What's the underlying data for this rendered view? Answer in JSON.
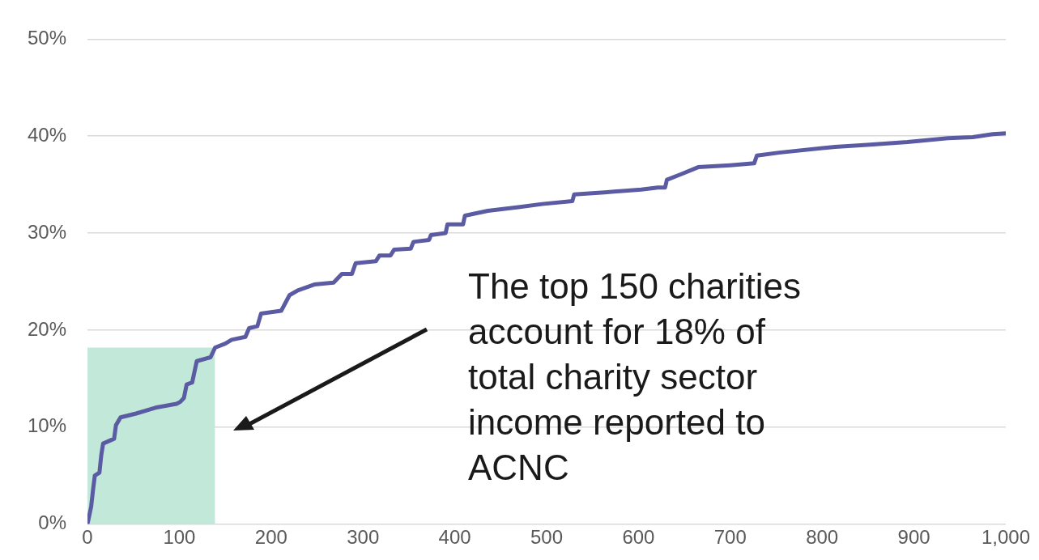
{
  "chart_data": {
    "type": "line",
    "x": [
      0,
      4,
      6,
      8,
      13,
      15,
      17,
      29,
      31,
      36,
      53,
      74,
      97,
      101,
      105,
      108,
      114,
      119,
      134,
      139,
      150,
      157,
      172,
      176,
      185,
      189,
      211,
      220,
      229,
      247,
      268,
      277,
      288,
      292,
      314,
      318,
      330,
      334,
      352,
      355,
      372,
      374,
      390,
      392,
      409,
      411,
      436,
      471,
      495,
      528,
      530,
      563,
      603,
      621,
      629,
      631,
      647,
      665,
      700,
      726,
      729,
      753,
      814,
      849,
      893,
      937,
      964,
      986,
      1000
    ],
    "xlim": [
      0,
      1000
    ],
    "xticks": [
      0,
      100,
      200,
      300,
      400,
      500,
      600,
      700,
      800,
      900,
      {
        "value": 1000,
        "label": "1,000"
      }
    ],
    "ylim": [
      0,
      50
    ],
    "yticks": [
      {
        "value": 0,
        "label": "0%"
      },
      {
        "value": 10,
        "label": "10%"
      },
      {
        "value": 20,
        "label": "20%"
      },
      {
        "value": 30,
        "label": "30%"
      },
      {
        "value": 40,
        "label": "40%"
      },
      {
        "value": 50,
        "label": "50%"
      }
    ],
    "grid": "y",
    "legend": false,
    "marker": "none",
    "line_style": "solid",
    "series": [
      {
        "type": "area",
        "color": "#c2e8da",
        "x": [
          0,
          139
        ],
        "values": [
          18.2,
          18.2
        ]
      },
      {
        "type": "line",
        "color": "#5b5ba3",
        "values": [
          0,
          1.8,
          3.5,
          5.0,
          5.3,
          7.1,
          8.3,
          8.8,
          10.2,
          11.0,
          11.4,
          12.0,
          12.4,
          12.6,
          13.0,
          14.4,
          14.6,
          16.8,
          17.2,
          18.2,
          18.6,
          19.0,
          19.3,
          20.2,
          20.4,
          21.7,
          22.0,
          23.6,
          24.1,
          24.7,
          24.9,
          25.8,
          25.8,
          26.9,
          27.1,
          27.7,
          27.7,
          28.3,
          28.4,
          29.1,
          29.3,
          29.8,
          30.0,
          30.9,
          30.9,
          31.8,
          32.3,
          32.7,
          33.0,
          33.3,
          34.0,
          34.2,
          34.5,
          34.7,
          34.7,
          35.5,
          36.1,
          36.8,
          37.0,
          37.2,
          38.0,
          38.3,
          38.9,
          39.1,
          39.4,
          39.8,
          39.9,
          40.2,
          40.3
        ]
      }
    ],
    "annotations": [
      "The top 150 charities account for 18% of total charity sector income reported to ACNC"
    ]
  }
}
